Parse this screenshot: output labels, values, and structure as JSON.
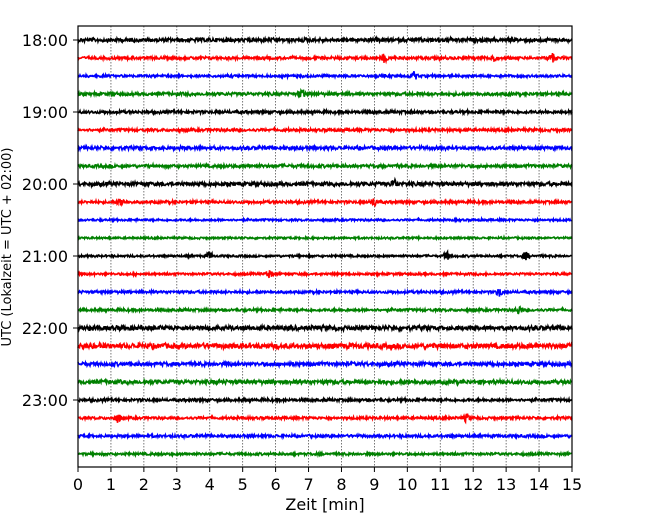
{
  "chart_data": {
    "type": "line",
    "subtype": "helicorder",
    "xlabel": "Zeit  [min]",
    "ylabel": "UTC (Lokalzeit = UTC + 02:00)",
    "xlim": [
      0,
      15
    ],
    "x_ticks": [
      "0",
      "1",
      "2",
      "3",
      "4",
      "5",
      "6",
      "7",
      "8",
      "9",
      "10",
      "11",
      "12",
      "13",
      "14",
      "15"
    ],
    "y_ticks": [
      "18:00",
      "19:00",
      "20:00",
      "21:00",
      "22:00",
      "23:00"
    ],
    "grid": "vertical dotted at each minute",
    "colors": [
      "#000000",
      "#ff0000",
      "#0000ff",
      "#008000"
    ],
    "traces": [
      {
        "start": "18:00",
        "noise": 2.2,
        "events": []
      },
      {
        "start": "18:15",
        "noise": 1.6,
        "events": [
          9.3,
          12.6,
          14.4
        ]
      },
      {
        "start": "18:30",
        "noise": 1.4,
        "events": [
          10.2
        ]
      },
      {
        "start": "18:45",
        "noise": 1.8,
        "events": [
          6.8
        ]
      },
      {
        "start": "19:00",
        "noise": 1.7,
        "events": []
      },
      {
        "start": "19:15",
        "noise": 1.6,
        "events": []
      },
      {
        "start": "19:30",
        "noise": 2.0,
        "events": []
      },
      {
        "start": "19:45",
        "noise": 1.8,
        "events": []
      },
      {
        "start": "20:00",
        "noise": 2.2,
        "events": [
          9.6
        ]
      },
      {
        "start": "20:15",
        "noise": 1.6,
        "events": [
          1.3,
          9.0
        ]
      },
      {
        "start": "20:30",
        "noise": 1.2,
        "events": []
      },
      {
        "start": "20:45",
        "noise": 1.1,
        "events": []
      },
      {
        "start": "21:00",
        "noise": 1.2,
        "events": [
          4.0,
          11.2,
          13.6
        ]
      },
      {
        "start": "21:15",
        "noise": 1.3,
        "events": [
          5.8
        ]
      },
      {
        "start": "21:30",
        "noise": 1.5,
        "events": [
          12.8
        ]
      },
      {
        "start": "21:45",
        "noise": 1.5,
        "events": [
          13.4
        ]
      },
      {
        "start": "22:00",
        "noise": 2.6,
        "events": []
      },
      {
        "start": "22:15",
        "noise": 3.0,
        "events": []
      },
      {
        "start": "22:30",
        "noise": 2.2,
        "events": []
      },
      {
        "start": "22:45",
        "noise": 2.3,
        "events": []
      },
      {
        "start": "23:00",
        "noise": 1.6,
        "events": []
      },
      {
        "start": "23:15",
        "noise": 1.5,
        "events": [
          1.2,
          11.8
        ]
      },
      {
        "start": "23:30",
        "noise": 1.6,
        "events": []
      },
      {
        "start": "23:45",
        "noise": 1.4,
        "events": []
      }
    ]
  }
}
